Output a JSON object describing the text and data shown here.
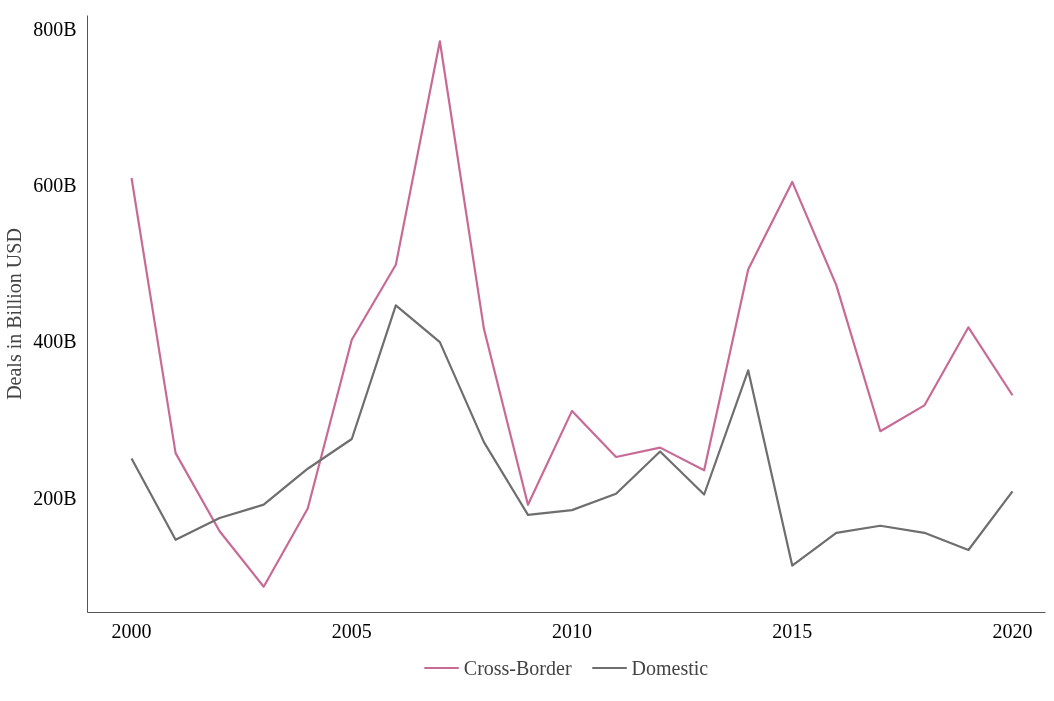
{
  "chart_data": {
    "type": "line",
    "ylabel": "Deals in Billion USD",
    "x": [
      2000,
      2001,
      2002,
      2003,
      2004,
      2005,
      2006,
      2007,
      2008,
      2009,
      2010,
      2011,
      2012,
      2013,
      2014,
      2015,
      2016,
      2017,
      2018,
      2019,
      2020
    ],
    "series": [
      {
        "name": "Cross-Border",
        "color": "#c86a96",
        "values": [
          609,
          257,
          157,
          86,
          186,
          402,
          498,
          784,
          416,
          191,
          311,
          252,
          264,
          235,
          492,
          604,
          472,
          285,
          318,
          418,
          331
        ]
      },
      {
        "name": "Domestic",
        "color": "#6e6e6e",
        "values": [
          250,
          146,
          174,
          191,
          237,
          275,
          446,
          399,
          271,
          178,
          184,
          205,
          259,
          204,
          363,
          113,
          155,
          164,
          155,
          133,
          208
        ]
      }
    ],
    "xlim": [
      1999,
      2020.75
    ],
    "ylim": [
      53,
      817
    ],
    "xticks": [
      2000,
      2005,
      2010,
      2015,
      2020
    ],
    "yticks": [
      {
        "value": 200,
        "label": "200B"
      },
      {
        "value": 400,
        "label": "400B"
      },
      {
        "value": 600,
        "label": "600B"
      },
      {
        "value": 800,
        "label": "800B"
      }
    ],
    "grid": false,
    "legend": "bottom",
    "line_style": "solid"
  }
}
